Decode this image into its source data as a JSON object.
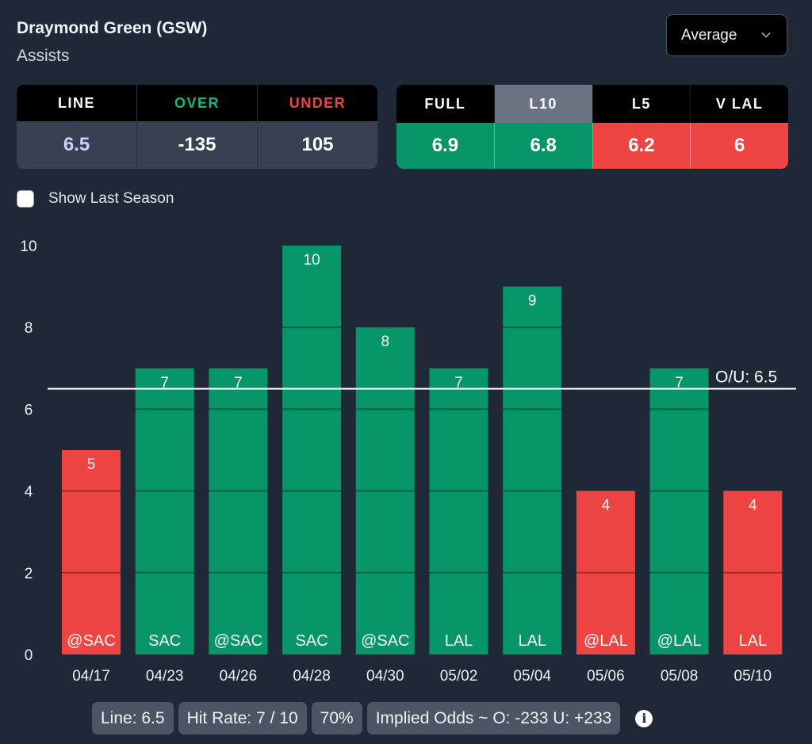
{
  "header": {
    "player": "Draymond Green (GSW)",
    "stat": "Assists",
    "dropdown": {
      "selected": "Average",
      "icon": "chevron-down-icon"
    }
  },
  "odds_table": {
    "headers": [
      {
        "label": "LINE",
        "color": "#ffffff"
      },
      {
        "label": "OVER",
        "color": "#10b981"
      },
      {
        "label": "UNDER",
        "color": "#ef4444"
      }
    ],
    "values": [
      {
        "value": "6.5",
        "color": "#c7d2fe"
      },
      {
        "value": "-135",
        "color": "#ffffff"
      },
      {
        "value": "105",
        "color": "#ffffff"
      }
    ]
  },
  "averages_table": {
    "columns": [
      {
        "label": "FULL",
        "value": "6.9",
        "selected": false,
        "status": "over"
      },
      {
        "label": "L10",
        "value": "6.8",
        "selected": true,
        "status": "over"
      },
      {
        "label": "L5",
        "value": "6.2",
        "selected": false,
        "status": "under"
      },
      {
        "label": "V LAL",
        "value": "6",
        "selected": false,
        "status": "under"
      }
    ]
  },
  "show_last_season": {
    "label": "Show Last Season",
    "checked": false
  },
  "colors": {
    "over": "#079669",
    "under": "#ef4444",
    "background": "#1f2837",
    "selected_header": "#6b7280"
  },
  "chart_data": {
    "type": "bar",
    "title": "",
    "xlabel": "",
    "ylabel": "",
    "ylim": [
      0,
      10
    ],
    "yticks": [
      0,
      2,
      4,
      6,
      8,
      10
    ],
    "categories": [
      "04/17",
      "04/23",
      "04/26",
      "04/28",
      "04/30",
      "05/02",
      "05/04",
      "05/06",
      "05/08",
      "05/10"
    ],
    "opponents": [
      "@SAC",
      "SAC",
      "@SAC",
      "SAC",
      "@SAC",
      "LAL",
      "LAL",
      "@LAL",
      "@LAL",
      "LAL"
    ],
    "values": [
      5,
      7,
      7,
      10,
      8,
      7,
      9,
      4,
      7,
      4
    ],
    "reference_line": {
      "value": 6.5,
      "label": "O/U: 6.5"
    },
    "grid": true
  },
  "footer": {
    "line": "Line: 6.5",
    "hit_rate": "Hit Rate: 7 / 10",
    "percent": "70%",
    "implied_odds": "Implied Odds ~ O: -233 U: +233",
    "info_icon": "i"
  }
}
